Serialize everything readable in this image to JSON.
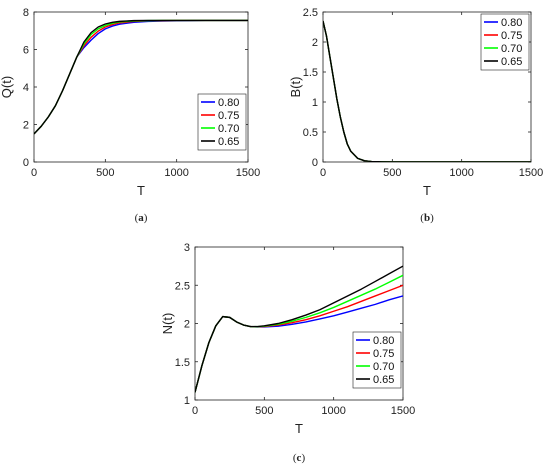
{
  "colors": {
    "blue": "#0000ff",
    "red": "#ff0000",
    "green": "#00ff00",
    "black": "#000000"
  },
  "chart_data": [
    {
      "type": "line",
      "panel": "a",
      "caption": "a",
      "title": "",
      "xlabel": "T",
      "ylabel": "Q(t)",
      "xlim": [
        0,
        1500
      ],
      "ylim": [
        0,
        8
      ],
      "xticks": [
        "0",
        "500",
        "1000",
        "1500"
      ],
      "yticks": [
        "0",
        "2",
        "4",
        "6",
        "8"
      ],
      "grid": false,
      "legend": "lower-right",
      "series": [
        {
          "name": "0.80",
          "color": "#0000ff",
          "x": [
            0,
            50,
            100,
            150,
            200,
            250,
            300,
            350,
            400,
            450,
            500,
            550,
            600,
            700,
            800,
            900,
            1000,
            1100,
            1200,
            1300,
            1400,
            1500
          ],
          "y": [
            1.5,
            1.9,
            2.4,
            3.0,
            3.8,
            4.7,
            5.6,
            6.1,
            6.5,
            6.85,
            7.1,
            7.25,
            7.35,
            7.45,
            7.5,
            7.52,
            7.53,
            7.54,
            7.55,
            7.55,
            7.55,
            7.55
          ]
        },
        {
          "name": "0.75",
          "color": "#ff0000",
          "x": [
            0,
            50,
            100,
            150,
            200,
            250,
            300,
            350,
            400,
            450,
            500,
            550,
            600,
            700,
            800,
            900,
            1000,
            1100,
            1200,
            1300,
            1400,
            1500
          ],
          "y": [
            1.5,
            1.9,
            2.4,
            3.0,
            3.8,
            4.7,
            5.6,
            6.2,
            6.65,
            6.98,
            7.2,
            7.33,
            7.42,
            7.5,
            7.53,
            7.54,
            7.55,
            7.55,
            7.55,
            7.55,
            7.55,
            7.55
          ]
        },
        {
          "name": "0.70",
          "color": "#00ff00",
          "x": [
            0,
            50,
            100,
            150,
            200,
            250,
            300,
            350,
            400,
            450,
            500,
            550,
            600,
            700,
            800,
            900,
            1000,
            1100,
            1200,
            1300,
            1400,
            1500
          ],
          "y": [
            1.5,
            1.9,
            2.4,
            3.0,
            3.8,
            4.7,
            5.6,
            6.3,
            6.8,
            7.1,
            7.28,
            7.4,
            7.47,
            7.52,
            7.54,
            7.55,
            7.55,
            7.55,
            7.55,
            7.55,
            7.55,
            7.55
          ]
        },
        {
          "name": "0.65",
          "color": "#000000",
          "x": [
            0,
            50,
            100,
            150,
            200,
            250,
            300,
            350,
            400,
            450,
            500,
            550,
            600,
            700,
            800,
            900,
            1000,
            1100,
            1200,
            1300,
            1400,
            1500
          ],
          "y": [
            1.5,
            1.9,
            2.4,
            3.0,
            3.8,
            4.7,
            5.6,
            6.4,
            6.9,
            7.2,
            7.36,
            7.45,
            7.5,
            7.54,
            7.55,
            7.55,
            7.55,
            7.55,
            7.55,
            7.55,
            7.55,
            7.55
          ]
        }
      ]
    },
    {
      "type": "line",
      "panel": "b",
      "caption": "b",
      "title": "",
      "xlabel": "T",
      "ylabel": "B(t)",
      "xlim": [
        0,
        1500
      ],
      "ylim": [
        0,
        2.5
      ],
      "xticks": [
        "0",
        "500",
        "1000",
        "1500"
      ],
      "yticks": [
        "0",
        "0.5",
        "1",
        "1.5",
        "2",
        "2.5"
      ],
      "grid": false,
      "legend": "top-right",
      "series": [
        {
          "name": "0.80",
          "color": "#0000ff",
          "x": [
            0,
            25,
            50,
            75,
            100,
            125,
            150,
            175,
            200,
            250,
            300,
            350,
            400,
            500,
            600,
            800,
            1000,
            1500
          ],
          "y": [
            2.35,
            2.1,
            1.75,
            1.4,
            1.05,
            0.75,
            0.5,
            0.3,
            0.18,
            0.06,
            0.02,
            0.008,
            0.004,
            0.001,
            0,
            0,
            0,
            0
          ]
        },
        {
          "name": "0.75",
          "color": "#ff0000",
          "x": [
            0,
            25,
            50,
            75,
            100,
            125,
            150,
            175,
            200,
            250,
            300,
            350,
            400,
            500,
            600,
            800,
            1000,
            1500
          ],
          "y": [
            2.35,
            2.1,
            1.75,
            1.4,
            1.05,
            0.75,
            0.5,
            0.3,
            0.18,
            0.06,
            0.02,
            0.008,
            0.004,
            0.001,
            0,
            0,
            0,
            0
          ]
        },
        {
          "name": "0.70",
          "color": "#00ff00",
          "x": [
            0,
            25,
            50,
            75,
            100,
            125,
            150,
            175,
            200,
            250,
            300,
            350,
            400,
            500,
            600,
            800,
            1000,
            1500
          ],
          "y": [
            2.35,
            2.1,
            1.75,
            1.4,
            1.05,
            0.75,
            0.5,
            0.3,
            0.18,
            0.06,
            0.02,
            0.008,
            0.004,
            0.001,
            0,
            0,
            0,
            0
          ]
        },
        {
          "name": "0.65",
          "color": "#000000",
          "x": [
            0,
            25,
            50,
            75,
            100,
            125,
            150,
            175,
            200,
            250,
            300,
            350,
            400,
            500,
            600,
            800,
            1000,
            1500
          ],
          "y": [
            2.35,
            2.1,
            1.75,
            1.4,
            1.05,
            0.75,
            0.5,
            0.3,
            0.18,
            0.06,
            0.02,
            0.008,
            0.004,
            0.001,
            0,
            0,
            0,
            0
          ]
        }
      ]
    },
    {
      "type": "line",
      "panel": "c",
      "caption": "c",
      "title": "",
      "xlabel": "T",
      "ylabel": "N(t)",
      "xlim": [
        0,
        1500
      ],
      "ylim": [
        1,
        3
      ],
      "xticks": [
        "0",
        "500",
        "1000",
        "1500"
      ],
      "yticks": [
        "1",
        "1.5",
        "2",
        "2.5",
        "3"
      ],
      "grid": false,
      "legend": "lower-right",
      "series": [
        {
          "name": "0.80",
          "color": "#0000ff",
          "x": [
            0,
            50,
            100,
            150,
            200,
            250,
            300,
            350,
            400,
            450,
            500,
            600,
            700,
            800,
            900,
            1000,
            1100,
            1200,
            1300,
            1400,
            1500
          ],
          "y": [
            1.1,
            1.45,
            1.75,
            1.97,
            2.09,
            2.08,
            2.02,
            1.98,
            1.96,
            1.955,
            1.955,
            1.965,
            1.99,
            2.02,
            2.06,
            2.1,
            2.15,
            2.2,
            2.25,
            2.31,
            2.36
          ]
        },
        {
          "name": "0.75",
          "color": "#ff0000",
          "x": [
            0,
            50,
            100,
            150,
            200,
            250,
            300,
            350,
            400,
            450,
            500,
            600,
            700,
            800,
            900,
            1000,
            1100,
            1200,
            1300,
            1400,
            1500
          ],
          "y": [
            1.1,
            1.45,
            1.75,
            1.97,
            2.09,
            2.08,
            2.02,
            1.98,
            1.96,
            1.957,
            1.96,
            1.98,
            2.01,
            2.05,
            2.1,
            2.16,
            2.22,
            2.29,
            2.36,
            2.43,
            2.5
          ]
        },
        {
          "name": "0.70",
          "color": "#00ff00",
          "x": [
            0,
            50,
            100,
            150,
            200,
            250,
            300,
            350,
            400,
            450,
            500,
            600,
            700,
            800,
            900,
            1000,
            1100,
            1200,
            1300,
            1400,
            1500
          ],
          "y": [
            1.1,
            1.45,
            1.75,
            1.97,
            2.09,
            2.08,
            2.02,
            1.98,
            1.96,
            1.958,
            1.965,
            1.99,
            2.03,
            2.08,
            2.14,
            2.21,
            2.29,
            2.37,
            2.45,
            2.54,
            2.63
          ]
        },
        {
          "name": "0.65",
          "color": "#000000",
          "x": [
            0,
            50,
            100,
            150,
            200,
            250,
            300,
            350,
            400,
            450,
            500,
            600,
            700,
            800,
            900,
            1000,
            1100,
            1200,
            1300,
            1400,
            1500
          ],
          "y": [
            1.1,
            1.45,
            1.75,
            1.97,
            2.09,
            2.08,
            2.02,
            1.98,
            1.96,
            1.96,
            1.97,
            2.0,
            2.05,
            2.11,
            2.18,
            2.27,
            2.36,
            2.45,
            2.55,
            2.65,
            2.75
          ]
        }
      ]
    }
  ]
}
